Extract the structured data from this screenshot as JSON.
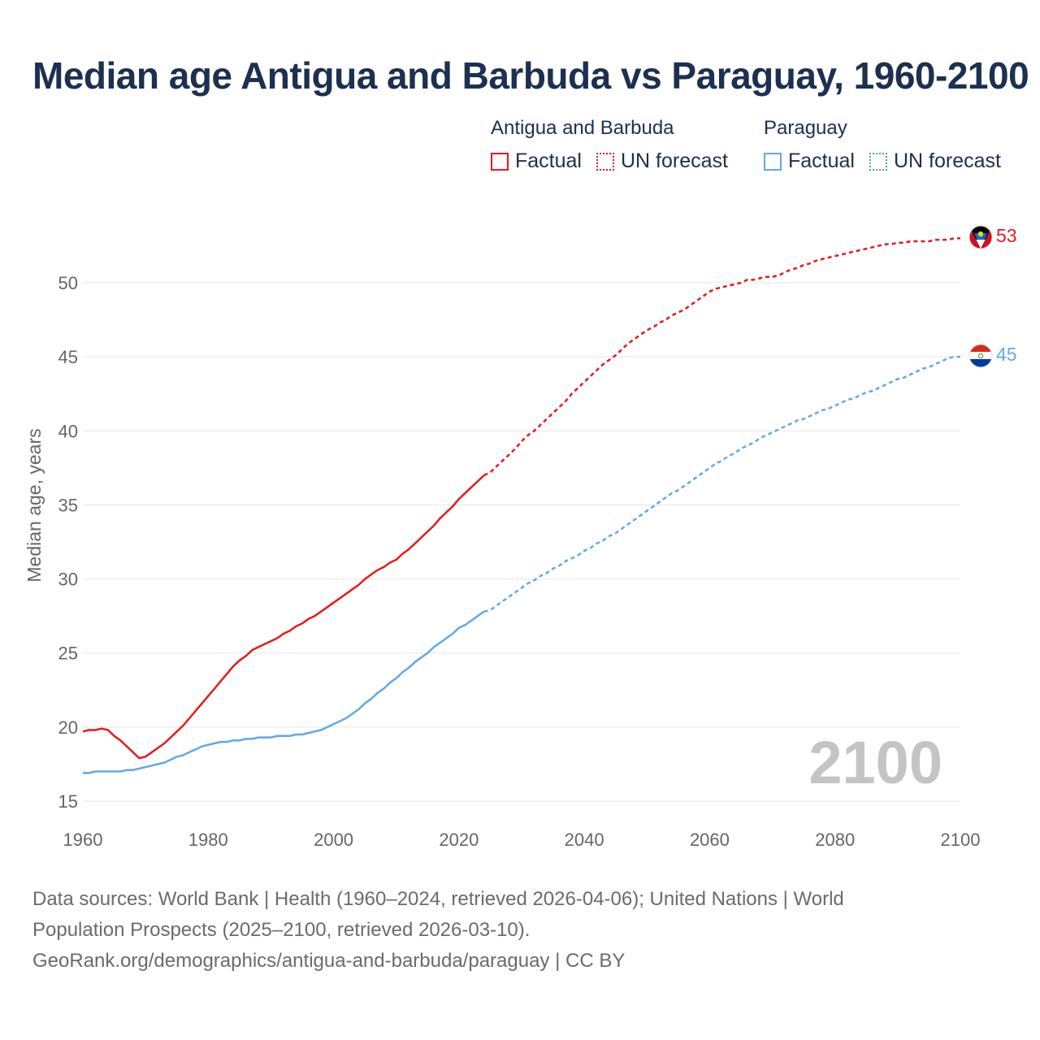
{
  "chart_data": {
    "type": "line",
    "title": "Median age Antigua and Barbuda vs Paraguay, 1960-2100",
    "xlabel": "",
    "ylabel": "Median age, years",
    "xlim": [
      1960,
      2100
    ],
    "ylim": [
      15,
      53
    ],
    "x_ticks": [
      "1960",
      "1980",
      "2000",
      "2020",
      "2040",
      "2060",
      "2080",
      "2100"
    ],
    "y_ticks": [
      "15",
      "20",
      "25",
      "30",
      "35",
      "40",
      "45",
      "50"
    ],
    "grid": true,
    "year_watermark": "2100",
    "legend": {
      "position": "top-right",
      "groups": [
        {
          "country": "Antigua and Barbuda",
          "factual_label": "Factual",
          "forecast_label": "UN forecast"
        },
        {
          "country": "Paraguay",
          "factual_label": "Factual",
          "forecast_label": "UN forecast"
        }
      ]
    },
    "series": [
      {
        "name": "Antigua and Barbuda",
        "color": "#e8191c",
        "end_label": "53",
        "flag": "antigua-and-barbuda-flag",
        "factual": {
          "x": [
            1960,
            1961,
            1962,
            1963,
            1964,
            1965,
            1966,
            1967,
            1968,
            1969,
            1970,
            1971,
            1972,
            1973,
            1974,
            1975,
            1976,
            1977,
            1978,
            1979,
            1980,
            1981,
            1982,
            1983,
            1984,
            1985,
            1986,
            1987,
            1988,
            1989,
            1990,
            1991,
            1992,
            1993,
            1994,
            1995,
            1996,
            1997,
            1998,
            1999,
            2000,
            2001,
            2002,
            2003,
            2004,
            2005,
            2006,
            2007,
            2008,
            2009,
            2010,
            2011,
            2012,
            2013,
            2014,
            2015,
            2016,
            2017,
            2018,
            2019,
            2020,
            2021,
            2022,
            2023,
            2024
          ],
          "values": [
            19.7,
            19.8,
            19.8,
            19.9,
            19.8,
            19.4,
            19.1,
            18.7,
            18.3,
            17.9,
            18.0,
            18.3,
            18.6,
            18.9,
            19.3,
            19.7,
            20.1,
            20.6,
            21.1,
            21.6,
            22.1,
            22.6,
            23.1,
            23.6,
            24.1,
            24.5,
            24.8,
            25.2,
            25.4,
            25.6,
            25.8,
            26.0,
            26.3,
            26.5,
            26.8,
            27.0,
            27.3,
            27.5,
            27.8,
            28.1,
            28.4,
            28.7,
            29.0,
            29.3,
            29.6,
            30.0,
            30.3,
            30.6,
            30.8,
            31.1,
            31.3,
            31.7,
            32.0,
            32.4,
            32.8,
            33.2,
            33.6,
            34.1,
            34.5,
            34.9,
            35.4,
            35.8,
            36.2,
            36.6,
            37.0
          ]
        },
        "forecast": {
          "x": [
            2024,
            2025,
            2026,
            2027,
            2028,
            2029,
            2030,
            2031,
            2032,
            2033,
            2034,
            2035,
            2036,
            2037,
            2038,
            2039,
            2040,
            2041,
            2042,
            2043,
            2044,
            2045,
            2046,
            2047,
            2048,
            2049,
            2050,
            2051,
            2052,
            2053,
            2054,
            2055,
            2056,
            2057,
            2058,
            2059,
            2060,
            2061,
            2062,
            2063,
            2064,
            2065,
            2066,
            2067,
            2068,
            2069,
            2070,
            2071,
            2072,
            2073,
            2074,
            2075,
            2076,
            2077,
            2078,
            2079,
            2080,
            2081,
            2082,
            2083,
            2084,
            2085,
            2086,
            2087,
            2088,
            2089,
            2090,
            2091,
            2092,
            2093,
            2094,
            2095,
            2096,
            2097,
            2098,
            2099,
            2100
          ],
          "values": [
            37.0,
            37.2,
            37.6,
            38.0,
            38.4,
            38.8,
            39.3,
            39.7,
            40.0,
            40.4,
            40.8,
            41.2,
            41.6,
            42.0,
            42.5,
            42.9,
            43.3,
            43.7,
            44.1,
            44.5,
            44.8,
            45.1,
            45.5,
            45.9,
            46.2,
            46.5,
            46.8,
            47.0,
            47.3,
            47.5,
            47.8,
            48.0,
            48.2,
            48.5,
            48.8,
            49.1,
            49.4,
            49.6,
            49.7,
            49.8,
            49.9,
            50.0,
            50.2,
            50.2,
            50.3,
            50.4,
            50.4,
            50.5,
            50.7,
            50.9,
            51.0,
            51.2,
            51.3,
            51.5,
            51.6,
            51.7,
            51.8,
            51.9,
            52.0,
            52.1,
            52.2,
            52.3,
            52.4,
            52.5,
            52.6,
            52.6,
            52.7,
            52.7,
            52.8,
            52.8,
            52.8,
            52.8,
            52.9,
            52.9,
            52.9,
            53.0,
            53.0
          ]
        }
      },
      {
        "name": "Paraguay",
        "color": "#62a8e6",
        "end_label": "45",
        "flag": "paraguay-flag",
        "factual": {
          "x": [
            1960,
            1961,
            1962,
            1963,
            1964,
            1965,
            1966,
            1967,
            1968,
            1969,
            1970,
            1971,
            1972,
            1973,
            1974,
            1975,
            1976,
            1977,
            1978,
            1979,
            1980,
            1981,
            1982,
            1983,
            1984,
            1985,
            1986,
            1987,
            1988,
            1989,
            1990,
            1991,
            1992,
            1993,
            1994,
            1995,
            1996,
            1997,
            1998,
            1999,
            2000,
            2001,
            2002,
            2003,
            2004,
            2005,
            2006,
            2007,
            2008,
            2009,
            2010,
            2011,
            2012,
            2013,
            2014,
            2015,
            2016,
            2017,
            2018,
            2019,
            2020,
            2021,
            2022,
            2023,
            2024
          ],
          "values": [
            16.9,
            16.9,
            17.0,
            17.0,
            17.0,
            17.0,
            17.0,
            17.1,
            17.1,
            17.2,
            17.3,
            17.4,
            17.5,
            17.6,
            17.8,
            18.0,
            18.1,
            18.3,
            18.5,
            18.7,
            18.8,
            18.9,
            19.0,
            19.0,
            19.1,
            19.1,
            19.2,
            19.2,
            19.3,
            19.3,
            19.3,
            19.4,
            19.4,
            19.4,
            19.5,
            19.5,
            19.6,
            19.7,
            19.8,
            20.0,
            20.2,
            20.4,
            20.6,
            20.9,
            21.2,
            21.6,
            21.9,
            22.3,
            22.6,
            23.0,
            23.3,
            23.7,
            24.0,
            24.4,
            24.7,
            25.0,
            25.4,
            25.7,
            26.0,
            26.3,
            26.7,
            26.9,
            27.2,
            27.5,
            27.8
          ]
        },
        "forecast": {
          "x": [
            2024,
            2025,
            2026,
            2027,
            2028,
            2029,
            2030,
            2031,
            2032,
            2033,
            2034,
            2035,
            2036,
            2037,
            2038,
            2039,
            2040,
            2041,
            2042,
            2043,
            2044,
            2045,
            2046,
            2047,
            2048,
            2049,
            2050,
            2051,
            2052,
            2053,
            2054,
            2055,
            2056,
            2057,
            2058,
            2059,
            2060,
            2061,
            2062,
            2063,
            2064,
            2065,
            2066,
            2067,
            2068,
            2069,
            2070,
            2071,
            2072,
            2073,
            2074,
            2075,
            2076,
            2077,
            2078,
            2079,
            2080,
            2081,
            2082,
            2083,
            2084,
            2085,
            2086,
            2087,
            2088,
            2089,
            2090,
            2091,
            2092,
            2093,
            2094,
            2095,
            2096,
            2097,
            2098,
            2099,
            2100
          ],
          "values": [
            27.8,
            27.9,
            28.2,
            28.5,
            28.8,
            29.1,
            29.4,
            29.7,
            29.9,
            30.2,
            30.4,
            30.7,
            30.9,
            31.2,
            31.4,
            31.6,
            31.9,
            32.1,
            32.4,
            32.6,
            32.9,
            33.1,
            33.4,
            33.7,
            34.0,
            34.3,
            34.6,
            34.9,
            35.2,
            35.5,
            35.8,
            36.0,
            36.3,
            36.6,
            36.9,
            37.2,
            37.5,
            37.8,
            38.0,
            38.3,
            38.5,
            38.8,
            39.0,
            39.2,
            39.5,
            39.7,
            39.9,
            40.1,
            40.3,
            40.5,
            40.7,
            40.8,
            41.0,
            41.2,
            41.4,
            41.5,
            41.7,
            41.9,
            42.1,
            42.2,
            42.4,
            42.6,
            42.7,
            42.9,
            43.1,
            43.3,
            43.5,
            43.6,
            43.8,
            44.0,
            44.2,
            44.3,
            44.5,
            44.7,
            44.9,
            45.0,
            45.0
          ]
        }
      }
    ]
  },
  "footer": {
    "line1": "Data sources: World Bank | Health (1960–2024, retrieved 2026-04-06); United Nations | World",
    "line2": "Population Prospects (2025–2100, retrieved 2026-03-10).",
    "line3": "GeoRank.org/demographics/antigua-and-barbuda/paraguay | CC BY"
  },
  "colors": {
    "title": "#1c3050",
    "antigua": "#e8191c",
    "paraguay": "#62a8e6",
    "grid": "#e6e6e6",
    "axis_text": "#666666",
    "watermark": "#c4c4c4"
  }
}
